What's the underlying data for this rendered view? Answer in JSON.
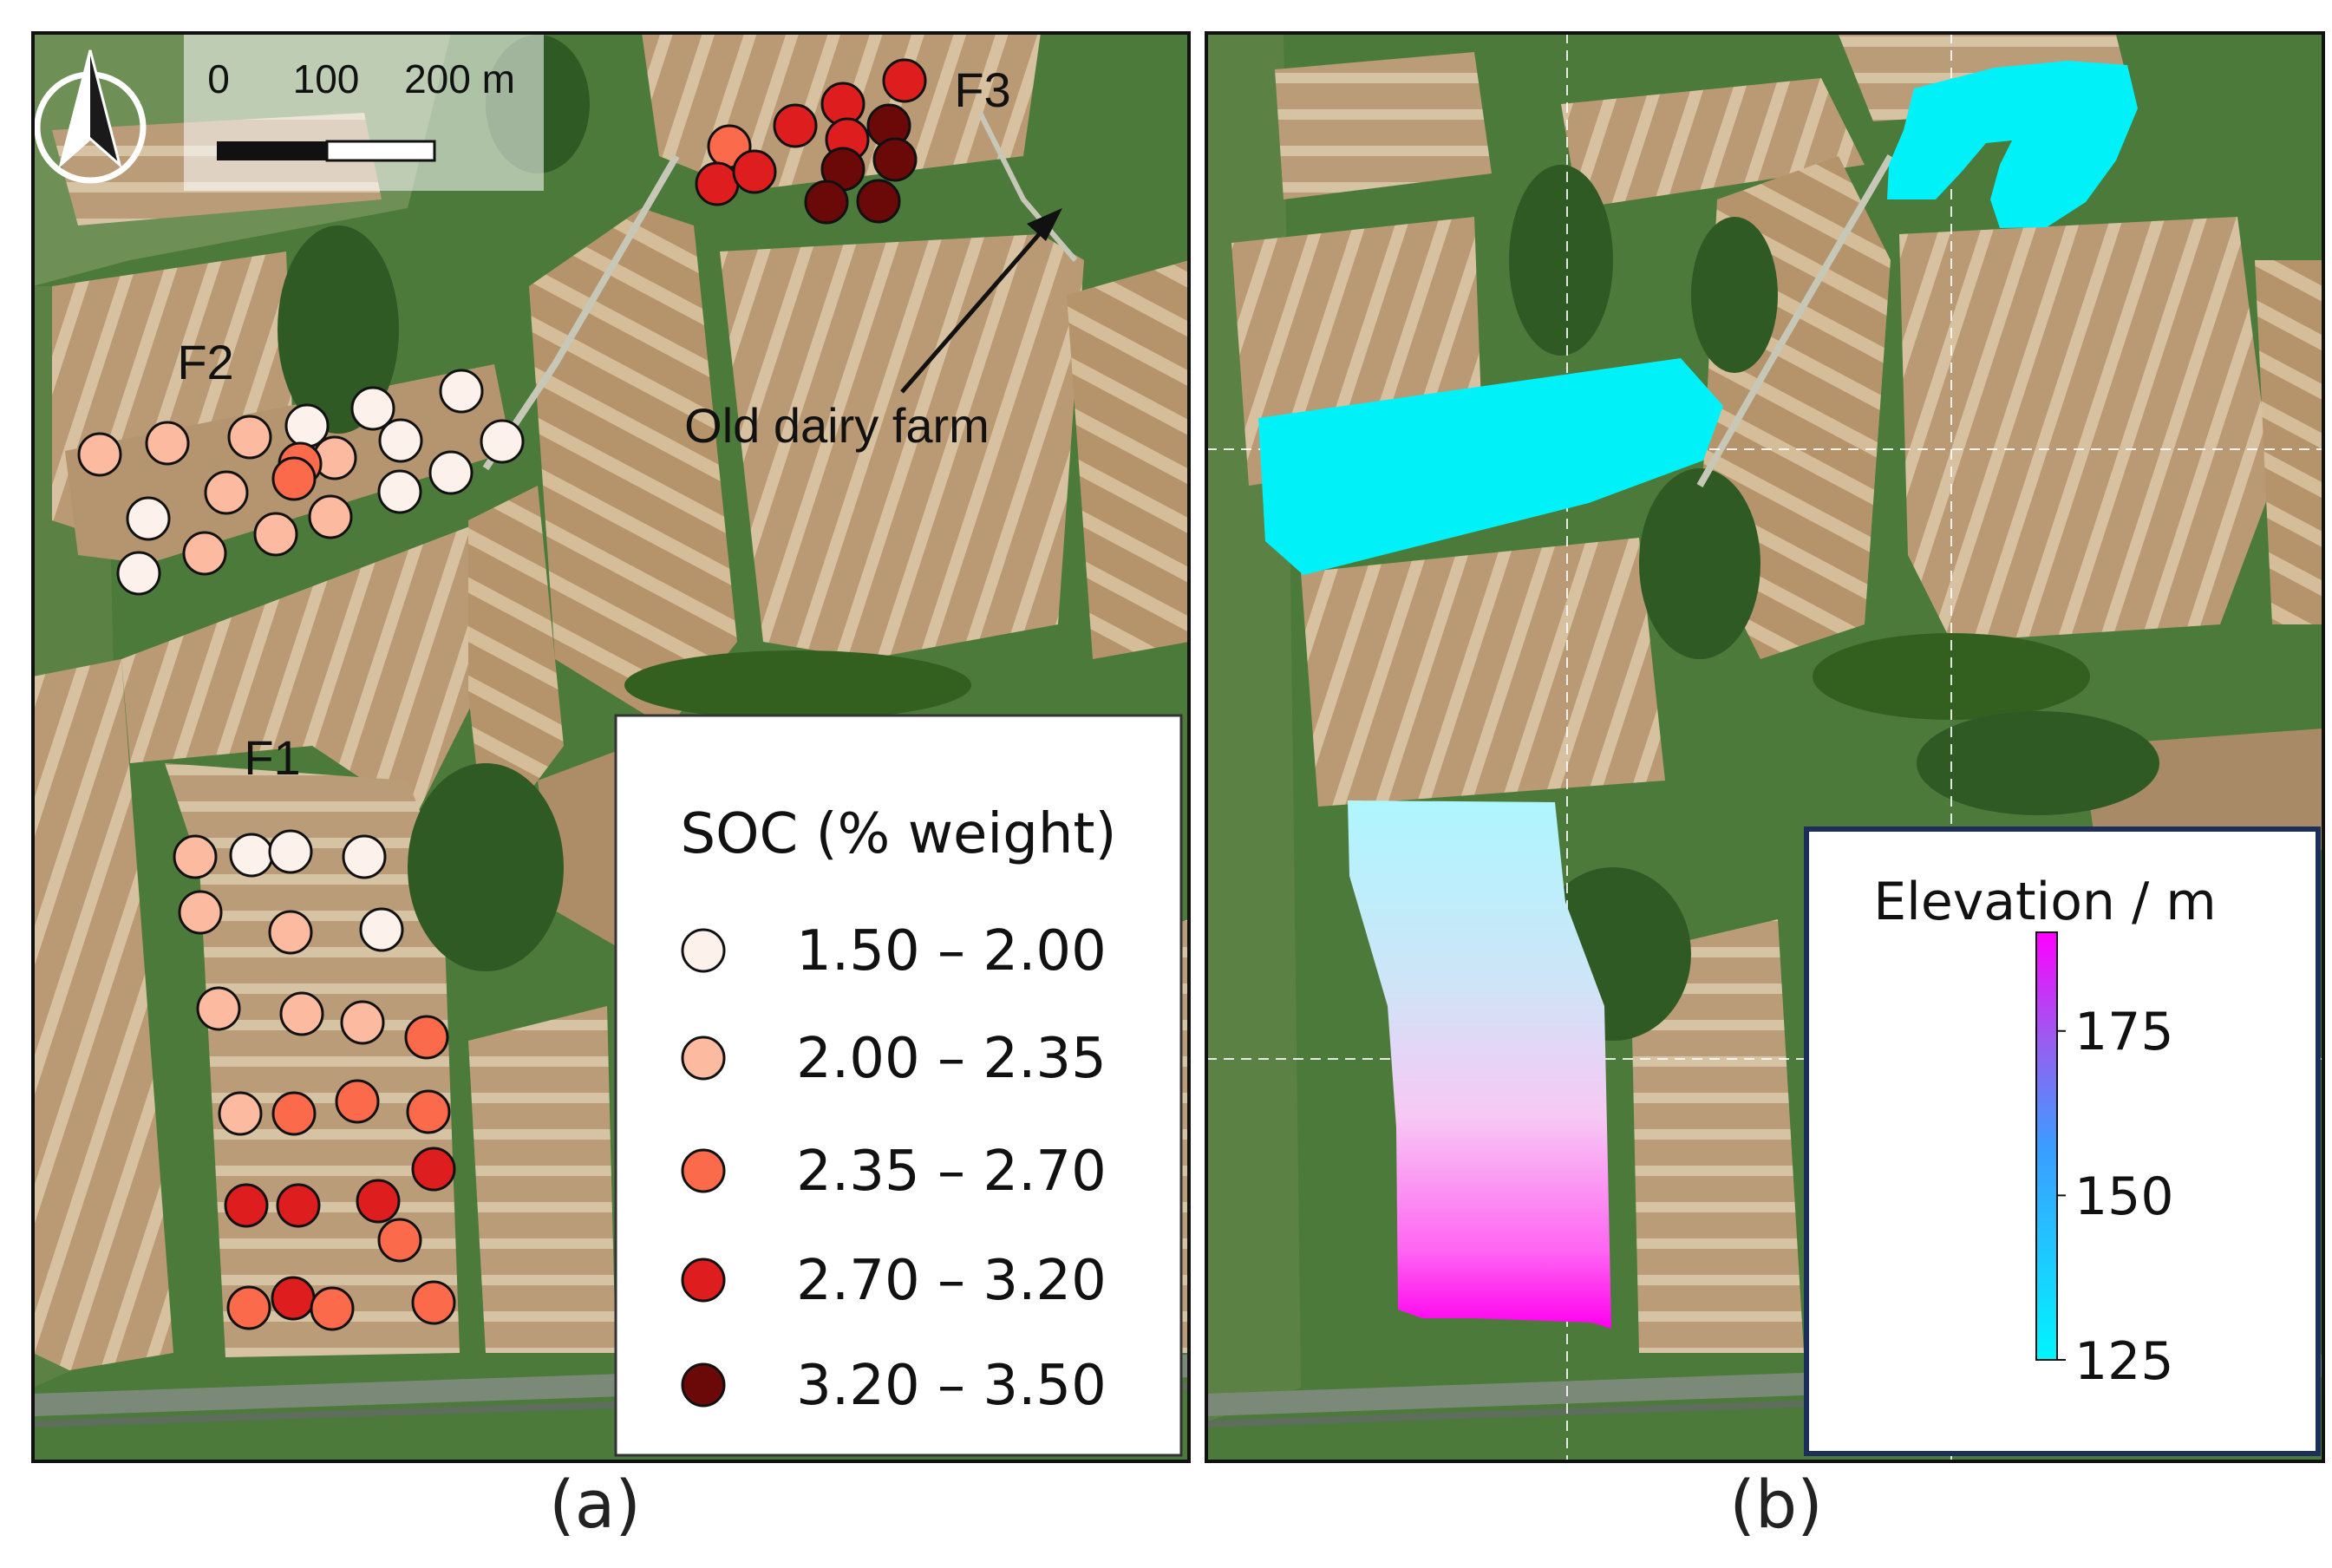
{
  "colors": {
    "soc_class_1": "#fdf1ec",
    "soc_class_2": "#fcbba1",
    "soc_class_3": "#fb6a4a",
    "soc_class_4": "#de1e1e",
    "soc_class_5": "#6b0808",
    "elevation_low": "#00f5ff",
    "elevation_high": "#ff00ff",
    "field_cyan": "#00f2f8"
  },
  "panel_a": {
    "caption": "(a)",
    "north_arrow_icon": "north-arrow-icon",
    "scale_bar": {
      "labels": [
        "0",
        "100",
        "200 m"
      ]
    },
    "field_labels": [
      "F1",
      "F2",
      "F3"
    ],
    "annotation": "Old dairy farm",
    "legend": {
      "title": "SOC (% weight)",
      "classes": [
        {
          "label": "1.50 – 2.00",
          "color": "#fdf1ec"
        },
        {
          "label": "2.00 – 2.35",
          "color": "#fcbba1"
        },
        {
          "label": "2.35 – 2.70",
          "color": "#fb6a4a"
        },
        {
          "label": "2.70 – 3.20",
          "color": "#de1e1e"
        },
        {
          "label": "3.20 – 3.50",
          "color": "#6b0808"
        }
      ]
    },
    "sample_class_counts": {
      "F1": [
        3,
        8,
        8,
        4,
        0
      ],
      "F2": [
        9,
        7,
        2,
        0,
        0
      ],
      "F3": [
        0,
        1,
        1,
        5,
        5
      ]
    }
  },
  "panel_b": {
    "caption": "(b)",
    "colorbar": {
      "title": "Elevation / m",
      "ticks": [
        "175",
        "150",
        "125"
      ],
      "range": [
        125,
        190
      ]
    }
  }
}
